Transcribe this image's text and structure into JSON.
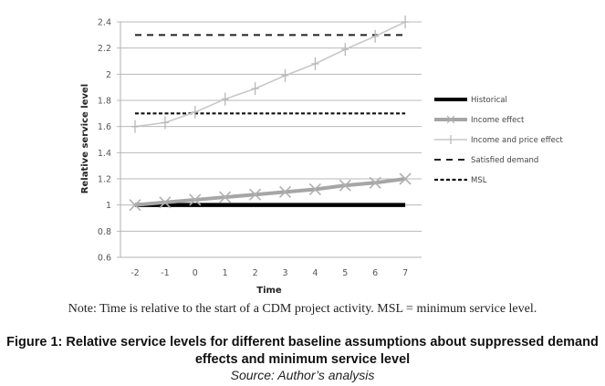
{
  "chart_data": {
    "type": "line",
    "title": "",
    "xlabel": "Time",
    "ylabel": "Relative service level",
    "x": [
      -2,
      -1,
      0,
      1,
      2,
      3,
      4,
      5,
      6,
      7
    ],
    "x_tick_labels": [
      "-2",
      "-1",
      "0",
      "1",
      "2",
      "3",
      "4",
      "5",
      "6",
      "7"
    ],
    "ylim": [
      0.6,
      2.4
    ],
    "y_ticks": [
      0.6,
      0.8,
      1,
      1.2,
      1.4,
      1.6,
      1.8,
      2,
      2.2,
      2.4
    ],
    "y_tick_labels": [
      "0.6",
      "0.8",
      "1",
      "1.2",
      "1.4",
      "1.6",
      "1.8",
      "2",
      "2.2",
      "2.4"
    ],
    "grid": true,
    "legend_position": "right",
    "series": [
      {
        "name": "Historical",
        "style": "solid-thick",
        "color": "#000000",
        "marker": "none",
        "values": [
          1.0,
          1.0,
          1.0,
          1.0,
          1.0,
          1.0,
          1.0,
          1.0,
          1.0,
          1.0
        ]
      },
      {
        "name": "Income effect",
        "style": "solid-medium",
        "color": "#a6a6a6",
        "marker": "x",
        "values": [
          1.0,
          1.02,
          1.04,
          1.06,
          1.08,
          1.1,
          1.12,
          1.15,
          1.17,
          1.2
        ]
      },
      {
        "name": "Income and price effect",
        "style": "solid-thin",
        "color": "#c8c8c8",
        "marker": "plus",
        "values": [
          1.6,
          1.63,
          1.71,
          1.81,
          1.89,
          1.99,
          2.08,
          2.19,
          2.29,
          2.4
        ]
      },
      {
        "name": "Satisfied demand",
        "style": "dashed",
        "color": "#222222",
        "marker": "none",
        "values": [
          2.3,
          2.3,
          2.3,
          2.3,
          2.3,
          2.3,
          2.3,
          2.3,
          2.3,
          2.3
        ]
      },
      {
        "name": "MSL",
        "style": "dotted-dash",
        "color": "#111111",
        "marker": "none",
        "values": [
          1.7,
          1.7,
          1.7,
          1.7,
          1.7,
          1.7,
          1.7,
          1.7,
          1.7,
          1.7
        ]
      }
    ]
  },
  "note": "Note: Time is relative to the start of a CDM project activity. MSL = minimum service level.",
  "caption": {
    "line1": "Figure 1: Relative service levels for different baseline assumptions about suppressed demand",
    "line2": "effects and minimum service level"
  },
  "source": "Source: Author’s analysis"
}
